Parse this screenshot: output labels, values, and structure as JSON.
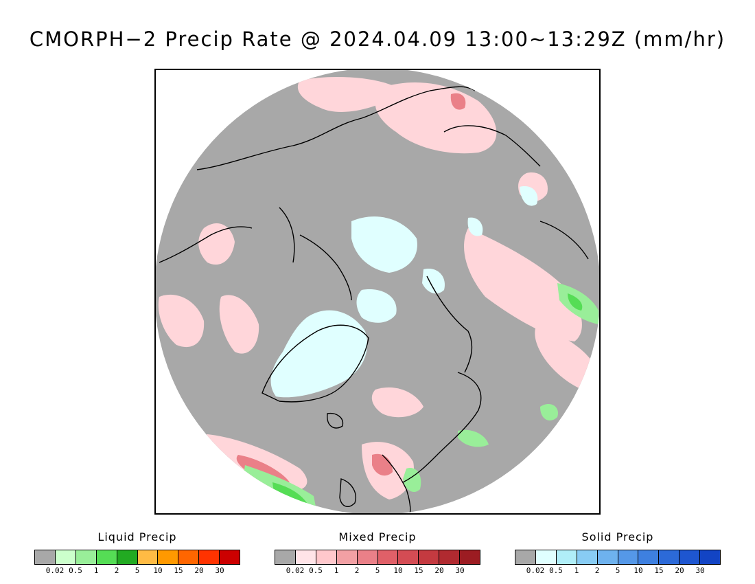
{
  "title": "CMORPH−2 Precip Rate @ 2024.04.09 13:00~13:29Z (mm/hr)",
  "map": {
    "projection": "north-polar-stereographic",
    "background_no_precip": "#a8a8a8",
    "coastline_color": "#000000"
  },
  "legends": [
    {
      "title": "Liquid Precip",
      "colors": [
        "#a8a8a8",
        "#ccffcc",
        "#99ee99",
        "#55dd55",
        "#22aa22",
        "#ffbb44",
        "#ff9900",
        "#ff6600",
        "#ff3300",
        "#cc0000"
      ],
      "ticks": [
        "0.02",
        "0.5",
        "1",
        "2",
        "5",
        "10",
        "15",
        "20",
        "30"
      ]
    },
    {
      "title": "Mixed Precip",
      "colors": [
        "#a8a8a8",
        "#ffe4e8",
        "#ffc8cc",
        "#f2a0a4",
        "#ea8088",
        "#e06068",
        "#d44c54",
        "#c43a40",
        "#b02a30",
        "#9c1c22"
      ],
      "ticks": [
        "0.02",
        "0.5",
        "1",
        "2",
        "5",
        "10",
        "15",
        "20",
        "30"
      ]
    },
    {
      "title": "Solid Precip",
      "colors": [
        "#a8a8a8",
        "#e0ffff",
        "#b0eef8",
        "#88ccf4",
        "#6eb2ee",
        "#5598e8",
        "#3e80e0",
        "#2c6ad8",
        "#1e56d0",
        "#1244c4"
      ],
      "ticks": [
        "0.02",
        "0.5",
        "1",
        "2",
        "5",
        "10",
        "15",
        "20",
        "30"
      ]
    }
  ]
}
